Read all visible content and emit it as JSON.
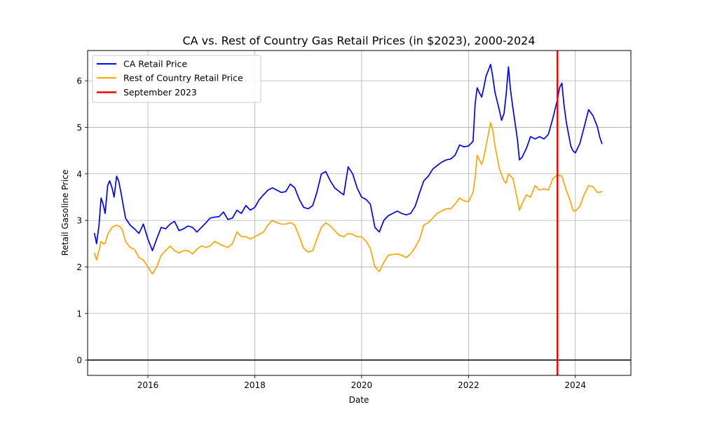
{
  "chart_data": {
    "type": "line",
    "title": "CA vs. Rest of Country Gas Retail Prices (in $2023), 2000-2024",
    "xlabel": "Date",
    "ylabel": "Retail Gasoline Price",
    "xlim": [
      "2014-11-15",
      "2025-01-15"
    ],
    "ylim": [
      -0.33,
      6.65
    ],
    "x_ticks": [
      {
        "date": "2016-01-01",
        "label": "2016"
      },
      {
        "date": "2018-01-01",
        "label": "2018"
      },
      {
        "date": "2020-01-01",
        "label": "2020"
      },
      {
        "date": "2022-01-01",
        "label": "2022"
      },
      {
        "date": "2024-01-01",
        "label": "2024"
      }
    ],
    "y_ticks": [
      0,
      1,
      2,
      3,
      4,
      5,
      6
    ],
    "grid": true,
    "legend_position": "top-left",
    "zero_line": {
      "y": 0,
      "color": "#000000"
    },
    "vline": {
      "name": "September 2023",
      "date": "2023-09-01",
      "color": "#ff0000"
    },
    "series": [
      {
        "name": "CA Retail Price",
        "color": "#0000ff",
        "points": [
          [
            "2015-01-01",
            2.72
          ],
          [
            "2015-01-15",
            2.5
          ],
          [
            "2015-02-01",
            2.9
          ],
          [
            "2015-02-15",
            3.48
          ],
          [
            "2015-03-01",
            3.35
          ],
          [
            "2015-03-15",
            3.15
          ],
          [
            "2015-04-01",
            3.75
          ],
          [
            "2015-04-15",
            3.85
          ],
          [
            "2015-05-01",
            3.7
          ],
          [
            "2015-05-15",
            3.5
          ],
          [
            "2015-06-01",
            3.95
          ],
          [
            "2015-06-15",
            3.85
          ],
          [
            "2015-07-01",
            3.6
          ],
          [
            "2015-07-15",
            3.35
          ],
          [
            "2015-08-01",
            3.05
          ],
          [
            "2015-09-01",
            2.9
          ],
          [
            "2015-10-01",
            2.82
          ],
          [
            "2015-11-01",
            2.72
          ],
          [
            "2015-12-01",
            2.92
          ],
          [
            "2016-01-01",
            2.6
          ],
          [
            "2016-02-01",
            2.35
          ],
          [
            "2016-03-01",
            2.6
          ],
          [
            "2016-04-01",
            2.85
          ],
          [
            "2016-05-01",
            2.82
          ],
          [
            "2016-06-01",
            2.92
          ],
          [
            "2016-07-01",
            2.98
          ],
          [
            "2016-08-01",
            2.78
          ],
          [
            "2016-09-01",
            2.82
          ],
          [
            "2016-10-01",
            2.88
          ],
          [
            "2016-11-01",
            2.85
          ],
          [
            "2016-12-01",
            2.75
          ],
          [
            "2017-01-01",
            2.85
          ],
          [
            "2017-02-01",
            2.95
          ],
          [
            "2017-03-01",
            3.05
          ],
          [
            "2017-04-01",
            3.07
          ],
          [
            "2017-05-01",
            3.08
          ],
          [
            "2017-06-01",
            3.18
          ],
          [
            "2017-07-01",
            3.02
          ],
          [
            "2017-08-01",
            3.05
          ],
          [
            "2017-09-01",
            3.22
          ],
          [
            "2017-10-01",
            3.15
          ],
          [
            "2017-11-01",
            3.32
          ],
          [
            "2017-12-01",
            3.22
          ],
          [
            "2018-01-01",
            3.28
          ],
          [
            "2018-02-01",
            3.45
          ],
          [
            "2018-03-01",
            3.55
          ],
          [
            "2018-04-01",
            3.65
          ],
          [
            "2018-05-01",
            3.7
          ],
          [
            "2018-06-01",
            3.65
          ],
          [
            "2018-07-01",
            3.6
          ],
          [
            "2018-08-01",
            3.62
          ],
          [
            "2018-09-01",
            3.78
          ],
          [
            "2018-10-01",
            3.7
          ],
          [
            "2018-11-01",
            3.45
          ],
          [
            "2018-12-01",
            3.28
          ],
          [
            "2019-01-01",
            3.25
          ],
          [
            "2019-02-01",
            3.32
          ],
          [
            "2019-03-01",
            3.6
          ],
          [
            "2019-04-01",
            4.0
          ],
          [
            "2019-05-01",
            4.05
          ],
          [
            "2019-06-01",
            3.85
          ],
          [
            "2019-07-01",
            3.7
          ],
          [
            "2019-08-01",
            3.62
          ],
          [
            "2019-09-01",
            3.55
          ],
          [
            "2019-10-01",
            4.15
          ],
          [
            "2019-11-01",
            4.0
          ],
          [
            "2019-12-01",
            3.7
          ],
          [
            "2020-01-01",
            3.5
          ],
          [
            "2020-02-01",
            3.45
          ],
          [
            "2020-03-01",
            3.35
          ],
          [
            "2020-04-01",
            2.85
          ],
          [
            "2020-05-01",
            2.75
          ],
          [
            "2020-06-01",
            3.0
          ],
          [
            "2020-07-01",
            3.1
          ],
          [
            "2020-08-01",
            3.15
          ],
          [
            "2020-09-01",
            3.2
          ],
          [
            "2020-10-01",
            3.15
          ],
          [
            "2020-11-01",
            3.12
          ],
          [
            "2020-12-01",
            3.15
          ],
          [
            "2021-01-01",
            3.3
          ],
          [
            "2021-02-01",
            3.6
          ],
          [
            "2021-03-01",
            3.85
          ],
          [
            "2021-04-01",
            3.95
          ],
          [
            "2021-05-01",
            4.1
          ],
          [
            "2021-06-01",
            4.18
          ],
          [
            "2021-07-01",
            4.25
          ],
          [
            "2021-08-01",
            4.3
          ],
          [
            "2021-09-01",
            4.32
          ],
          [
            "2021-10-01",
            4.4
          ],
          [
            "2021-11-01",
            4.62
          ],
          [
            "2021-12-01",
            4.58
          ],
          [
            "2022-01-01",
            4.6
          ],
          [
            "2022-02-01",
            4.7
          ],
          [
            "2022-02-15",
            5.5
          ],
          [
            "2022-03-01",
            5.85
          ],
          [
            "2022-03-15",
            5.75
          ],
          [
            "2022-04-01",
            5.65
          ],
          [
            "2022-04-15",
            5.85
          ],
          [
            "2022-05-01",
            6.1
          ],
          [
            "2022-06-01",
            6.35
          ],
          [
            "2022-06-15",
            6.1
          ],
          [
            "2022-07-01",
            5.75
          ],
          [
            "2022-08-01",
            5.35
          ],
          [
            "2022-08-15",
            5.15
          ],
          [
            "2022-09-01",
            5.3
          ],
          [
            "2022-09-15",
            5.7
          ],
          [
            "2022-10-01",
            6.3
          ],
          [
            "2022-10-15",
            5.8
          ],
          [
            "2022-11-01",
            5.4
          ],
          [
            "2022-12-01",
            4.75
          ],
          [
            "2022-12-15",
            4.3
          ],
          [
            "2023-01-01",
            4.35
          ],
          [
            "2023-02-01",
            4.55
          ],
          [
            "2023-03-01",
            4.8
          ],
          [
            "2023-04-01",
            4.75
          ],
          [
            "2023-05-01",
            4.8
          ],
          [
            "2023-06-01",
            4.75
          ],
          [
            "2023-07-01",
            4.85
          ],
          [
            "2023-08-01",
            5.2
          ],
          [
            "2023-09-01",
            5.6
          ],
          [
            "2023-09-15",
            5.85
          ],
          [
            "2023-10-01",
            5.95
          ],
          [
            "2023-10-15",
            5.5
          ],
          [
            "2023-11-01",
            5.1
          ],
          [
            "2023-12-01",
            4.6
          ],
          [
            "2023-12-15",
            4.5
          ],
          [
            "2024-01-01",
            4.45
          ],
          [
            "2024-02-01",
            4.65
          ],
          [
            "2024-03-01",
            5.0
          ],
          [
            "2024-04-01",
            5.38
          ],
          [
            "2024-05-01",
            5.25
          ],
          [
            "2024-06-01",
            5.0
          ],
          [
            "2024-06-15",
            4.8
          ],
          [
            "2024-07-01",
            4.65
          ]
        ]
      },
      {
        "name": "Rest of Country Retail Price",
        "color": "#ffa500",
        "points": [
          [
            "2015-01-01",
            2.3
          ],
          [
            "2015-01-15",
            2.15
          ],
          [
            "2015-02-01",
            2.35
          ],
          [
            "2015-02-15",
            2.55
          ],
          [
            "2015-03-01",
            2.5
          ],
          [
            "2015-03-15",
            2.5
          ],
          [
            "2015-04-01",
            2.7
          ],
          [
            "2015-05-01",
            2.85
          ],
          [
            "2015-06-01",
            2.9
          ],
          [
            "2015-07-01",
            2.85
          ],
          [
            "2015-07-15",
            2.75
          ],
          [
            "2015-08-01",
            2.55
          ],
          [
            "2015-09-01",
            2.42
          ],
          [
            "2015-10-01",
            2.38
          ],
          [
            "2015-11-01",
            2.2
          ],
          [
            "2015-12-01",
            2.15
          ],
          [
            "2016-01-01",
            2.0
          ],
          [
            "2016-02-01",
            1.85
          ],
          [
            "2016-03-01",
            2.0
          ],
          [
            "2016-04-01",
            2.25
          ],
          [
            "2016-05-01",
            2.35
          ],
          [
            "2016-06-01",
            2.45
          ],
          [
            "2016-07-01",
            2.35
          ],
          [
            "2016-08-01",
            2.3
          ],
          [
            "2016-09-01",
            2.35
          ],
          [
            "2016-10-01",
            2.35
          ],
          [
            "2016-11-01",
            2.28
          ],
          [
            "2016-12-01",
            2.38
          ],
          [
            "2017-01-01",
            2.45
          ],
          [
            "2017-02-01",
            2.42
          ],
          [
            "2017-03-01",
            2.45
          ],
          [
            "2017-04-01",
            2.55
          ],
          [
            "2017-05-01",
            2.5
          ],
          [
            "2017-06-01",
            2.45
          ],
          [
            "2017-07-01",
            2.42
          ],
          [
            "2017-08-01",
            2.5
          ],
          [
            "2017-09-01",
            2.75
          ],
          [
            "2017-10-01",
            2.65
          ],
          [
            "2017-11-01",
            2.65
          ],
          [
            "2017-12-01",
            2.6
          ],
          [
            "2018-01-01",
            2.65
          ],
          [
            "2018-02-01",
            2.7
          ],
          [
            "2018-03-01",
            2.75
          ],
          [
            "2018-04-01",
            2.9
          ],
          [
            "2018-05-01",
            3.0
          ],
          [
            "2018-06-01",
            2.95
          ],
          [
            "2018-07-01",
            2.92
          ],
          [
            "2018-08-01",
            2.92
          ],
          [
            "2018-09-01",
            2.95
          ],
          [
            "2018-10-01",
            2.9
          ],
          [
            "2018-11-01",
            2.65
          ],
          [
            "2018-12-01",
            2.4
          ],
          [
            "2019-01-01",
            2.32
          ],
          [
            "2019-02-01",
            2.35
          ],
          [
            "2019-03-01",
            2.6
          ],
          [
            "2019-04-01",
            2.85
          ],
          [
            "2019-05-01",
            2.95
          ],
          [
            "2019-06-01",
            2.88
          ],
          [
            "2019-07-01",
            2.78
          ],
          [
            "2019-08-01",
            2.68
          ],
          [
            "2019-09-01",
            2.65
          ],
          [
            "2019-10-01",
            2.72
          ],
          [
            "2019-11-01",
            2.7
          ],
          [
            "2019-12-01",
            2.65
          ],
          [
            "2020-01-01",
            2.65
          ],
          [
            "2020-02-01",
            2.55
          ],
          [
            "2020-03-01",
            2.4
          ],
          [
            "2020-04-01",
            2.0
          ],
          [
            "2020-05-01",
            1.9
          ],
          [
            "2020-06-01",
            2.1
          ],
          [
            "2020-07-01",
            2.25
          ],
          [
            "2020-08-01",
            2.27
          ],
          [
            "2020-09-01",
            2.28
          ],
          [
            "2020-10-01",
            2.25
          ],
          [
            "2020-11-01",
            2.2
          ],
          [
            "2020-12-01",
            2.28
          ],
          [
            "2021-01-01",
            2.42
          ],
          [
            "2021-02-01",
            2.6
          ],
          [
            "2021-03-01",
            2.9
          ],
          [
            "2021-04-01",
            2.95
          ],
          [
            "2021-05-01",
            3.05
          ],
          [
            "2021-06-01",
            3.15
          ],
          [
            "2021-07-01",
            3.2
          ],
          [
            "2021-08-01",
            3.25
          ],
          [
            "2021-09-01",
            3.25
          ],
          [
            "2021-10-01",
            3.35
          ],
          [
            "2021-11-01",
            3.48
          ],
          [
            "2021-12-01",
            3.42
          ],
          [
            "2022-01-01",
            3.4
          ],
          [
            "2022-02-01",
            3.6
          ],
          [
            "2022-02-15",
            3.9
          ],
          [
            "2022-03-01",
            4.4
          ],
          [
            "2022-04-01",
            4.2
          ],
          [
            "2022-04-15",
            4.35
          ],
          [
            "2022-05-01",
            4.6
          ],
          [
            "2022-06-01",
            5.1
          ],
          [
            "2022-06-15",
            4.95
          ],
          [
            "2022-07-01",
            4.6
          ],
          [
            "2022-08-01",
            4.1
          ],
          [
            "2022-09-01",
            3.85
          ],
          [
            "2022-09-15",
            3.8
          ],
          [
            "2022-10-01",
            4.0
          ],
          [
            "2022-11-01",
            3.9
          ],
          [
            "2022-12-01",
            3.45
          ],
          [
            "2022-12-15",
            3.22
          ],
          [
            "2023-01-01",
            3.35
          ],
          [
            "2023-02-01",
            3.55
          ],
          [
            "2023-03-01",
            3.5
          ],
          [
            "2023-04-01",
            3.75
          ],
          [
            "2023-05-01",
            3.65
          ],
          [
            "2023-06-01",
            3.68
          ],
          [
            "2023-07-01",
            3.65
          ],
          [
            "2023-08-01",
            3.9
          ],
          [
            "2023-09-01",
            3.98
          ],
          [
            "2023-10-01",
            3.95
          ],
          [
            "2023-11-01",
            3.65
          ],
          [
            "2023-12-01",
            3.38
          ],
          [
            "2023-12-15",
            3.22
          ],
          [
            "2024-01-01",
            3.2
          ],
          [
            "2024-02-01",
            3.3
          ],
          [
            "2024-03-01",
            3.55
          ],
          [
            "2024-04-01",
            3.75
          ],
          [
            "2024-05-01",
            3.72
          ],
          [
            "2024-06-01",
            3.6
          ],
          [
            "2024-07-01",
            3.62
          ]
        ]
      }
    ]
  }
}
